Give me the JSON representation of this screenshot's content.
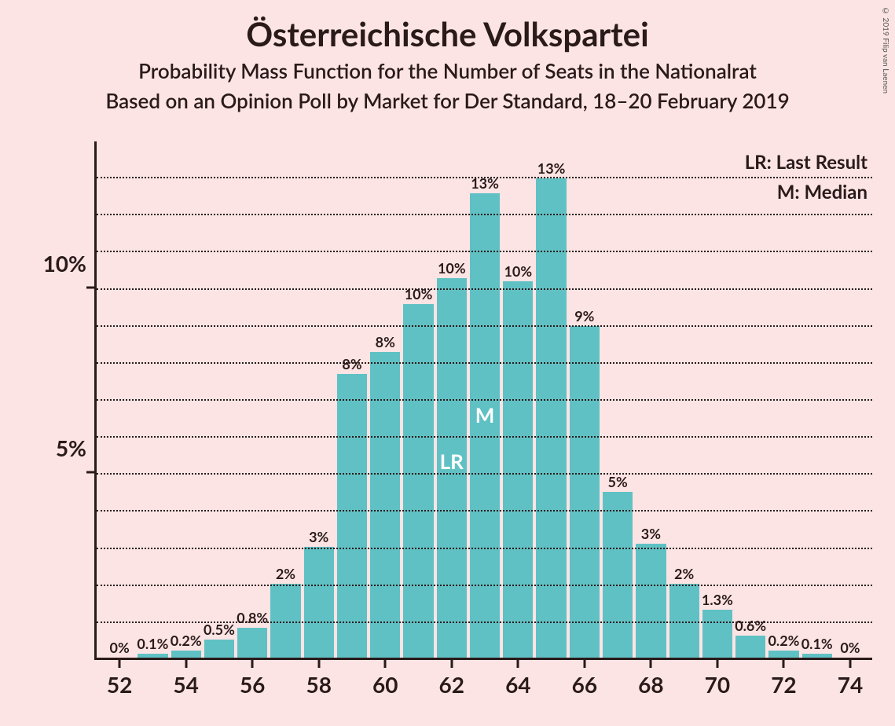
{
  "title": "Österreichische Volkspartei",
  "subtitle1": "Probability Mass Function for the Number of Seats in the Nationalrat",
  "subtitle2": "Based on an Opinion Poll by Market for Der Standard, 18–20 February 2019",
  "copyright": "© 2019 Filip van Laenen",
  "legend": {
    "lr": "LR: Last Result",
    "m": "M: Median"
  },
  "chart": {
    "type": "bar",
    "background_color": "#fce4e4",
    "bar_color": "#60c1c4",
    "text_color": "#2a1a1a",
    "annotation_color": "#ffffff",
    "title_fontsize": 42,
    "subtitle_fontsize": 26,
    "axis_label_fontsize": 28,
    "bar_label_fontsize": 18,
    "legend_fontsize": 24,
    "annotation_fontsize": 26,
    "copyright_fontsize": 10,
    "y_max": 14,
    "y_ticks": [
      {
        "value": 5,
        "label": "5%"
      },
      {
        "value": 10,
        "label": "10%"
      }
    ],
    "minor_gridlines": [
      1,
      2,
      3,
      4,
      6,
      7,
      8,
      9,
      11,
      12,
      13
    ],
    "x_tick_step": 2,
    "bars": [
      {
        "x": 52,
        "value": 0.0,
        "label": "0%"
      },
      {
        "x": 53,
        "value": 0.1,
        "label": "0.1%"
      },
      {
        "x": 54,
        "value": 0.2,
        "label": "0.2%"
      },
      {
        "x": 55,
        "value": 0.5,
        "label": "0.5%"
      },
      {
        "x": 56,
        "value": 0.8,
        "label": "0.8%"
      },
      {
        "x": 57,
        "value": 2.0,
        "label": "2%"
      },
      {
        "x": 58,
        "value": 3.0,
        "label": "3%"
      },
      {
        "x": 59,
        "value": 7.7,
        "label": "8%"
      },
      {
        "x": 60,
        "value": 8.3,
        "label": "8%"
      },
      {
        "x": 61,
        "value": 9.6,
        "label": "10%"
      },
      {
        "x": 62,
        "value": 10.3,
        "label": "10%",
        "annotation": "LR"
      },
      {
        "x": 63,
        "value": 12.6,
        "label": "13%",
        "annotation": "M"
      },
      {
        "x": 64,
        "value": 10.2,
        "label": "10%"
      },
      {
        "x": 65,
        "value": 13.0,
        "label": "13%"
      },
      {
        "x": 66,
        "value": 9.0,
        "label": "9%"
      },
      {
        "x": 67,
        "value": 4.5,
        "label": "5%"
      },
      {
        "x": 68,
        "value": 3.1,
        "label": "3%"
      },
      {
        "x": 69,
        "value": 2.0,
        "label": "2%"
      },
      {
        "x": 70,
        "value": 1.3,
        "label": "1.3%"
      },
      {
        "x": 71,
        "value": 0.6,
        "label": "0.6%"
      },
      {
        "x": 72,
        "value": 0.2,
        "label": "0.2%"
      },
      {
        "x": 73,
        "value": 0.1,
        "label": "0.1%"
      },
      {
        "x": 74,
        "value": 0.0,
        "label": "0%"
      }
    ]
  }
}
